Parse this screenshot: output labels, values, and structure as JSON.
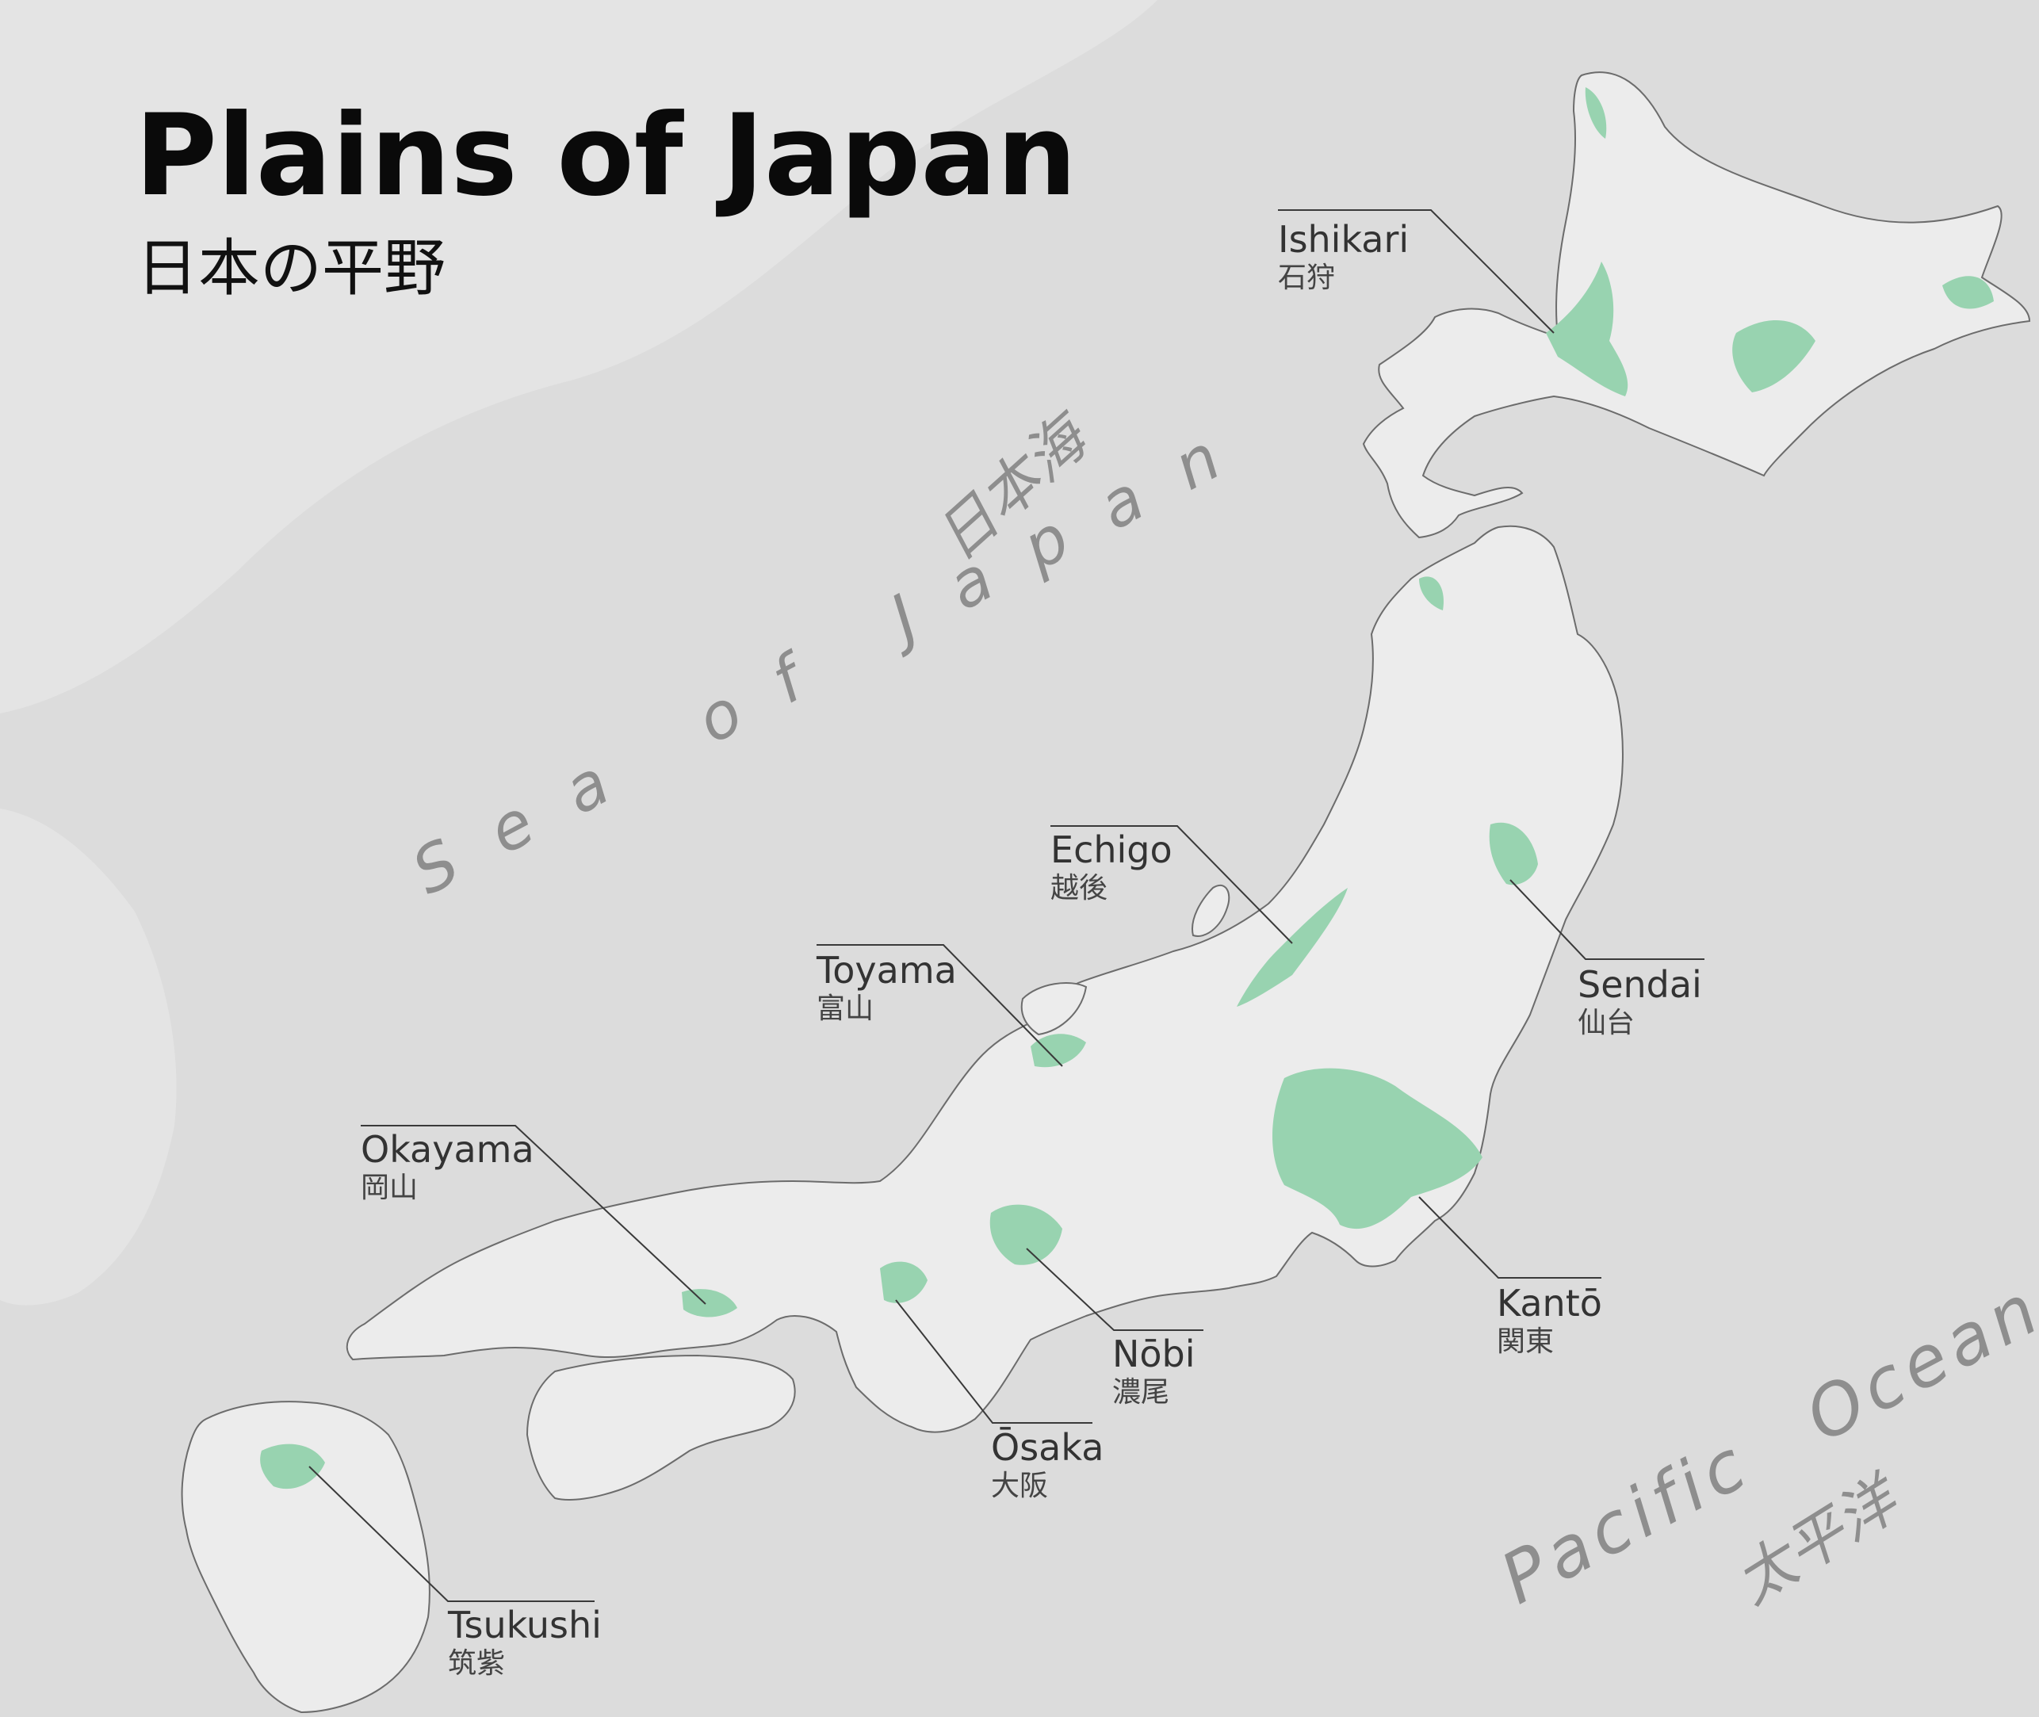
{
  "title": "Plains of Japan",
  "subtitle": "日本の平野",
  "seas": {
    "sea_of_japan": "Sea of Japan",
    "sea_of_japan_ja": "日本海",
    "pacific_ocean": "Pacific Ocean",
    "pacific_ocean_ja": "太平洋"
  },
  "plains": [
    {
      "name": "Ishikari",
      "name_ja": "石狩"
    },
    {
      "name": "Echigo",
      "name_ja": "越後"
    },
    {
      "name": "Sendai",
      "name_ja": "仙台"
    },
    {
      "name": "Toyama",
      "name_ja": "富山"
    },
    {
      "name": "Okayama",
      "name_ja": "岡山"
    },
    {
      "name": "Kantō",
      "name_ja": "関東"
    },
    {
      "name": "Nōbi",
      "name_ja": "濃尾"
    },
    {
      "name": "Ōsaka",
      "name_ja": "大阪"
    },
    {
      "name": "Tsukushi",
      "name_ja": "筑紫"
    }
  ],
  "colors": {
    "sea": "#dcdcdc",
    "land": "#ececec",
    "plain": "#98d3b0",
    "coastline": "#6c6c6c"
  }
}
